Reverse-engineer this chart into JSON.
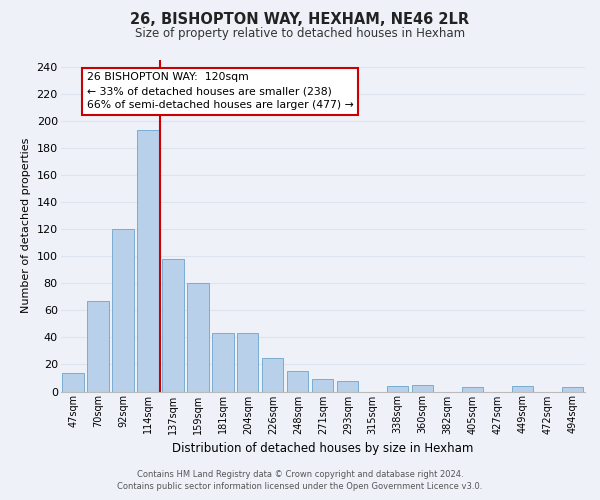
{
  "title": "26, BISHOPTON WAY, HEXHAM, NE46 2LR",
  "subtitle": "Size of property relative to detached houses in Hexham",
  "xlabel": "Distribution of detached houses by size in Hexham",
  "ylabel": "Number of detached properties",
  "categories": [
    "47sqm",
    "70sqm",
    "92sqm",
    "114sqm",
    "137sqm",
    "159sqm",
    "181sqm",
    "204sqm",
    "226sqm",
    "248sqm",
    "271sqm",
    "293sqm",
    "315sqm",
    "338sqm",
    "360sqm",
    "382sqm",
    "405sqm",
    "427sqm",
    "449sqm",
    "472sqm",
    "494sqm"
  ],
  "values": [
    14,
    67,
    120,
    193,
    98,
    80,
    43,
    43,
    25,
    15,
    9,
    8,
    0,
    4,
    5,
    0,
    3,
    0,
    4,
    0,
    3
  ],
  "bar_color": "#b8d0ea",
  "bar_edge_color": "#7aadd4",
  "grid_color": "#dce4ef",
  "background_color": "#eef2f8",
  "vline_x_index": 3,
  "vline_color": "#cc0000",
  "annotation_line1": "26 BISHOPTON WAY:  120sqm",
  "annotation_line2": "← 33% of detached houses are smaller (238)",
  "annotation_line3": "66% of semi-detached houses are larger (477) →",
  "annotation_box_color": "#ffffff",
  "annotation_box_edge_color": "#cc0000",
  "ylim": [
    0,
    245
  ],
  "yticks": [
    0,
    20,
    40,
    60,
    80,
    100,
    120,
    140,
    160,
    180,
    200,
    220,
    240
  ],
  "footer_line1": "Contains HM Land Registry data © Crown copyright and database right 2024.",
  "footer_line2": "Contains public sector information licensed under the Open Government Licence v3.0."
}
